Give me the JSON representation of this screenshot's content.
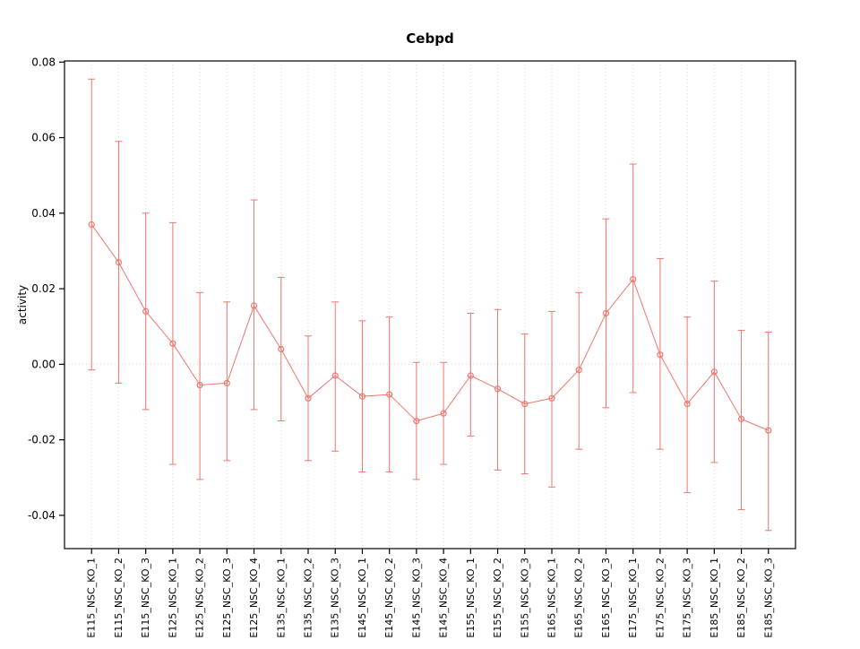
{
  "chart_data": {
    "type": "line",
    "title": "Cebpd",
    "ylabel": "activity",
    "xlabel": "",
    "legend": "none",
    "grid": "vertical dotted gridline at each category; horizontal dotted line at y=0",
    "marker": "open-circle",
    "error_bars": true,
    "ylim": [
      -0.0488,
      0.0803
    ],
    "yticks": [
      -0.04,
      -0.02,
      0,
      0.02,
      0.04,
      0.06,
      0.08
    ],
    "ytick_labels": [
      "-0.04",
      "-0.02",
      "0.00",
      "0.02",
      "0.04",
      "0.06",
      "0.08"
    ],
    "categories": [
      "E115_NSC_KO_1",
      "E115_NSC_KO_2",
      "E115_NSC_KO_3",
      "E125_NSC_KO_1",
      "E125_NSC_KO_2",
      "E125_NSC_KO_3",
      "E125_NSC_KO_4",
      "E135_NSC_KO_1",
      "E135_NSC_KO_2",
      "E135_NSC_KO_3",
      "E145_NSC_KO_1",
      "E145_NSC_KO_2",
      "E145_NSC_KO_3",
      "E145_NSC_KO_4",
      "E155_NSC_KO_1",
      "E155_NSC_KO_2",
      "E155_NSC_KO_3",
      "E165_NSC_KO_1",
      "E165_NSC_KO_2",
      "E165_NSC_KO_3",
      "E175_NSC_KO_1",
      "E175_NSC_KO_2",
      "E175_NSC_KO_3",
      "E185_NSC_KO_1",
      "E185_NSC_KO_2",
      "E185_NSC_KO_3"
    ],
    "series": [
      {
        "name": "activity",
        "values": [
          0.037,
          0.027,
          0.014,
          0.0055,
          -0.0055,
          -0.005,
          0.0155,
          0.004,
          -0.009,
          -0.003,
          -0.0085,
          -0.008,
          -0.015,
          -0.013,
          -0.003,
          -0.0065,
          -0.0105,
          -0.009,
          -0.0015,
          0.0135,
          0.0225,
          0.0025,
          -0.0105,
          -0.002,
          -0.0145,
          -0.0175
        ],
        "error_low": [
          -0.0015,
          -0.005,
          -0.012,
          -0.0265,
          -0.0305,
          -0.0255,
          -0.012,
          -0.015,
          -0.0255,
          -0.023,
          -0.0285,
          -0.0285,
          -0.0305,
          -0.0265,
          -0.019,
          -0.028,
          -0.029,
          -0.0325,
          -0.0225,
          -0.0115,
          -0.0075,
          -0.0225,
          -0.034,
          -0.026,
          -0.0385,
          -0.044
        ],
        "error_high": [
          0.0755,
          0.059,
          0.04,
          0.0375,
          0.019,
          0.0165,
          0.0435,
          0.023,
          0.0075,
          0.0165,
          0.0115,
          0.0125,
          0.0005,
          0.0005,
          0.0135,
          0.0145,
          0.008,
          0.014,
          0.019,
          0.0385,
          0.053,
          0.028,
          0.0125,
          0.022,
          0.009,
          0.0085
        ]
      }
    ],
    "colors": {
      "series": "#f0756e",
      "grid": "#d9d9d9",
      "axis": "#000000",
      "background": "#ffffff"
    }
  }
}
